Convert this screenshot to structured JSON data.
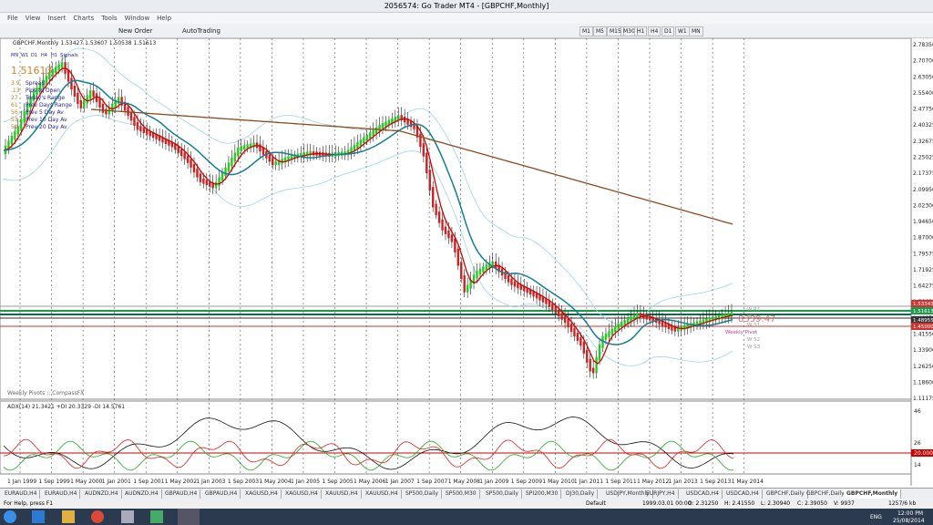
{
  "window": {
    "title": "2056574: Go Trader MT4 - [GBPCHF,Monthly]"
  },
  "menu": [
    "File",
    "View",
    "Insert",
    "Charts",
    "Tools",
    "Window",
    "Help"
  ],
  "toolbar": {
    "new_order": "New Order",
    "auto_trading": "AutoTrading",
    "timeframes": [
      "M1",
      "M5",
      "M15",
      "M30",
      "H1",
      "H4",
      "D1",
      "W1",
      "MN"
    ]
  },
  "chart": {
    "header": "GBPCHF,Monthly  1.53427 1.53607 1.50538 1.51613",
    "panel": {
      "tabs": [
        "MN",
        "W1",
        "D1",
        "H4",
        "H1"
      ],
      "signals": "Signals",
      "price": "1.51613",
      "rows": [
        [
          "3.9",
          "Spread"
        ],
        [
          ".13",
          "Pips to Open"
        ],
        [
          "27",
          "Today's Range"
        ],
        [
          "61",
          "Prev Days Range"
        ],
        [
          "56",
          "Prev 5 Day Av"
        ],
        [
          "53",
          "Prev 10 Day Av"
        ],
        [
          "59",
          "Prev 20 Day Av"
        ]
      ]
    },
    "price_axis": [
      "2.78350",
      "2.70700",
      "2.63050",
      "2.55400",
      "2.47750",
      "2.40325",
      "2.32675",
      "2.25025",
      "2.17375",
      "2.09950",
      "2.02300",
      "1.94650",
      "1.87000",
      "1.79575",
      "1.71925",
      "1.64275",
      "1.56625",
      "1.48975",
      "1.41550",
      "1.33900",
      "1.26250",
      "1.18600",
      "1.11175"
    ],
    "price_tags": [
      "1.53343",
      "1.51613",
      "1.48955",
      "1.45000"
    ],
    "pivot_title": "Weekly Pivots :: CompassFX",
    "pivot_labels": [
      "W R1",
      "W P",
      "Weekly Pivot",
      "W S1",
      "W S2",
      "W S3"
    ],
    "countdown": "8339:47",
    "date_axis": [
      "1 Jan 1999",
      "1 Sep 1999",
      "1 May 2000",
      "1 Jan 2001",
      "1 Sep 2001",
      "1 May 2002",
      "1 Jan 2003",
      "1 Sep 2003",
      "1 May 2004",
      "1 Jan 2005",
      "1 Sep 2005",
      "1 May 2006",
      "1 Jan 2007",
      "1 Sep 2007",
      "1 May 2008",
      "1 Jan 2009",
      "1 Sep 2009",
      "1 May 2010",
      "1 Jan 2011",
      "1 Sep 2011",
      "1 May 2012",
      "1 Jan 2013",
      "1 Sep 2013",
      "1 May 2014"
    ]
  },
  "indicator": {
    "header": "ADX(14) 21.3421 +DI 20.3329 -DI 14.5761",
    "axis": [
      "46",
      "26",
      "20.0000",
      "14"
    ]
  },
  "tabs": [
    "EURAUD,H4",
    "EURAUD,H4",
    "AUDNZD,H4",
    "AUDNZD,H4",
    "GBPAUD,H4",
    "GBPAUD,H4",
    "XAGUSD,H4",
    "XAGUSD,H4",
    "XAUUSD,H4",
    "XAUUSD,H4",
    "SP500,Daily",
    "SP500,M30",
    "SP500,Daily",
    "SPI200,M30",
    "DJ30,Daily",
    "USDJPY,Monthly",
    "EURJPY,H4",
    "USDCAD,H4",
    "USDCAD,H4",
    "GBPCHF,Daily",
    "GBPCHF,Daily",
    "GBPCHF,Monthly"
  ],
  "status": {
    "help": "For Help, press F1",
    "profile": "Default",
    "time": "1999.03.01 00:00",
    "open": "O: 2.31250",
    "high": "H: 2.41550",
    "low": "L: 2.30940",
    "close": "C: 2.39050",
    "volume": "V: 9937",
    "traffic": "1257/6 kb"
  },
  "taskbar": {
    "lang": "ENG",
    "time": "12:00 PM",
    "date": "25/08/2014"
  }
}
